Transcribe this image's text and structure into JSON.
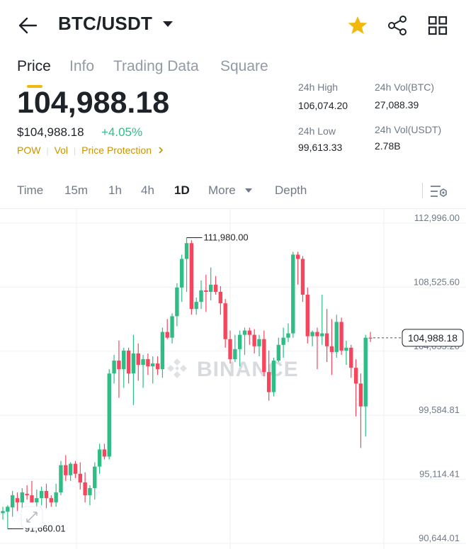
{
  "header": {
    "pair": "BTC/USDT",
    "icons": [
      "back-arrow-icon",
      "chevron-down-icon",
      "star-icon",
      "share-icon",
      "grid-icon"
    ],
    "star_color": "#f0b90b"
  },
  "tabs": [
    {
      "label": "Price",
      "active": true
    },
    {
      "label": "Info"
    },
    {
      "label": "Trading Data"
    },
    {
      "label": "Square"
    }
  ],
  "price": {
    "last": "104,988.18",
    "usd": "$104,988.18",
    "change": "+4.05%",
    "change_color": "#2ebd85",
    "tags": [
      "POW",
      "Vol",
      "Price Protection"
    ]
  },
  "stats": {
    "high_label": "24h High",
    "high": "106,074.20",
    "vol_btc_label": "24h Vol(BTC)",
    "vol_btc": "27,088.39",
    "low_label": "24h Low",
    "low": "99,613.33",
    "vol_usdt_label": "24h Vol(USDT)",
    "vol_usdt": "2.78B"
  },
  "intervals": {
    "time": "Time",
    "m15": "15m",
    "h1": "1h",
    "h4": "4h",
    "d1": "1D",
    "more": "More",
    "depth": "Depth"
  },
  "chart_data": {
    "type": "candlestick",
    "interval": "1D",
    "y_ticks": [
      112996.0,
      108525.6,
      104055.2,
      99584.81,
      95114.41,
      90644.01
    ],
    "y_tick_labels": [
      "112,996.00",
      "108,525.60",
      "104,055.20",
      "99,584.81",
      "95,114.41",
      "90,644.01"
    ],
    "ylim": [
      90644.01,
      112996.0
    ],
    "last_price": 104988.18,
    "last_price_label": "104,988.18",
    "max_label": "111,980.00",
    "max_value": 111980.0,
    "min_label": "91,660.01",
    "min_value": 91660.01,
    "watermark": "BINANCE",
    "up_color": "#2ebd85",
    "down_color": "#f6465d",
    "candles": [
      {
        "o": 92750,
        "h": 93200,
        "l": 92300,
        "c": 92900
      },
      {
        "o": 92850,
        "h": 93300,
        "l": 91660,
        "c": 93200
      },
      {
        "o": 93150,
        "h": 94300,
        "l": 92500,
        "c": 94000
      },
      {
        "o": 93800,
        "h": 94200,
        "l": 92900,
        "c": 93500
      },
      {
        "o": 93500,
        "h": 94500,
        "l": 93000,
        "c": 94200
      },
      {
        "o": 94100,
        "h": 94700,
        "l": 93700,
        "c": 94000
      },
      {
        "o": 94000,
        "h": 95000,
        "l": 93500,
        "c": 93500
      },
      {
        "o": 93500,
        "h": 94400,
        "l": 92700,
        "c": 93800
      },
      {
        "o": 93800,
        "h": 94600,
        "l": 93300,
        "c": 94300
      },
      {
        "o": 94300,
        "h": 94800,
        "l": 93100,
        "c": 93800
      },
      {
        "o": 93800,
        "h": 94000,
        "l": 93200,
        "c": 93500
      },
      {
        "o": 93500,
        "h": 94800,
        "l": 93200,
        "c": 94200
      },
      {
        "o": 94200,
        "h": 96400,
        "l": 94000,
        "c": 96100
      },
      {
        "o": 96100,
        "h": 96800,
        "l": 95000,
        "c": 95400
      },
      {
        "o": 95400,
        "h": 96300,
        "l": 95000,
        "c": 96200
      },
      {
        "o": 96200,
        "h": 96400,
        "l": 95200,
        "c": 95500
      },
      {
        "o": 95500,
        "h": 96300,
        "l": 94400,
        "c": 94900
      },
      {
        "o": 94900,
        "h": 95600,
        "l": 93500,
        "c": 94000
      },
      {
        "o": 94000,
        "h": 94700,
        "l": 93300,
        "c": 94500
      },
      {
        "o": 94500,
        "h": 96300,
        "l": 93700,
        "c": 96000
      },
      {
        "o": 96000,
        "h": 97600,
        "l": 95500,
        "c": 97200
      },
      {
        "o": 97200,
        "h": 97600,
        "l": 96500,
        "c": 96700
      },
      {
        "o": 96700,
        "h": 102800,
        "l": 96500,
        "c": 102500
      },
      {
        "o": 102500,
        "h": 103800,
        "l": 101800,
        "c": 103400
      },
      {
        "o": 103400,
        "h": 104800,
        "l": 100800,
        "c": 102800
      },
      {
        "o": 102800,
        "h": 104300,
        "l": 101500,
        "c": 104100
      },
      {
        "o": 104100,
        "h": 104300,
        "l": 101800,
        "c": 102500
      },
      {
        "o": 102500,
        "h": 105200,
        "l": 100300,
        "c": 103900
      },
      {
        "o": 103900,
        "h": 104600,
        "l": 102000,
        "c": 103100
      },
      {
        "o": 103100,
        "h": 103800,
        "l": 101500,
        "c": 103500
      },
      {
        "o": 103500,
        "h": 103900,
        "l": 102400,
        "c": 103000
      },
      {
        "o": 103000,
        "h": 103700,
        "l": 101800,
        "c": 103200
      },
      {
        "o": 103200,
        "h": 103700,
        "l": 102400,
        "c": 102800
      },
      {
        "o": 102800,
        "h": 105700,
        "l": 102200,
        "c": 105400
      },
      {
        "o": 105400,
        "h": 106300,
        "l": 104900,
        "c": 105000
      },
      {
        "o": 105000,
        "h": 106700,
        "l": 104600,
        "c": 106500
      },
      {
        "o": 106500,
        "h": 108800,
        "l": 105800,
        "c": 108500
      },
      {
        "o": 108500,
        "h": 110800,
        "l": 107500,
        "c": 110500
      },
      {
        "o": 110500,
        "h": 111980,
        "l": 108200,
        "c": 111600
      },
      {
        "o": 111600,
        "h": 111800,
        "l": 106600,
        "c": 107000
      },
      {
        "o": 107000,
        "h": 107800,
        "l": 106600,
        "c": 107500
      },
      {
        "o": 107500,
        "h": 109000,
        "l": 107000,
        "c": 108300
      },
      {
        "o": 108300,
        "h": 109400,
        "l": 106800,
        "c": 108200
      },
      {
        "o": 108200,
        "h": 109900,
        "l": 107600,
        "c": 108700
      },
      {
        "o": 108700,
        "h": 109300,
        "l": 108000,
        "c": 108200
      },
      {
        "o": 108200,
        "h": 108600,
        "l": 106600,
        "c": 107400
      },
      {
        "o": 107400,
        "h": 107700,
        "l": 104300,
        "c": 104900
      },
      {
        "o": 104900,
        "h": 105500,
        "l": 103200,
        "c": 103500
      },
      {
        "o": 103500,
        "h": 105200,
        "l": 103300,
        "c": 104200
      },
      {
        "o": 104200,
        "h": 105500,
        "l": 103000,
        "c": 105200
      },
      {
        "o": 105200,
        "h": 105700,
        "l": 103800,
        "c": 105500
      },
      {
        "o": 105500,
        "h": 105700,
        "l": 104500,
        "c": 105200
      },
      {
        "o": 105200,
        "h": 105600,
        "l": 103900,
        "c": 104400
      },
      {
        "o": 104400,
        "h": 105200,
        "l": 103700,
        "c": 104900
      },
      {
        "o": 104900,
        "h": 105500,
        "l": 102300,
        "c": 102600
      },
      {
        "o": 102600,
        "h": 104100,
        "l": 100600,
        "c": 101200
      },
      {
        "o": 101200,
        "h": 103600,
        "l": 100900,
        "c": 103400
      },
      {
        "o": 103400,
        "h": 105000,
        "l": 103300,
        "c": 104500
      },
      {
        "o": 104500,
        "h": 105700,
        "l": 103600,
        "c": 105000
      },
      {
        "o": 105000,
        "h": 106000,
        "l": 104700,
        "c": 105300
      },
      {
        "o": 105300,
        "h": 111000,
        "l": 105000,
        "c": 110800
      },
      {
        "o": 110800,
        "h": 111000,
        "l": 108700,
        "c": 110500
      },
      {
        "o": 110500,
        "h": 110700,
        "l": 107500,
        "c": 108000
      },
      {
        "o": 108000,
        "h": 108500,
        "l": 104600,
        "c": 105100
      },
      {
        "o": 105100,
        "h": 105500,
        "l": 104400,
        "c": 105400
      },
      {
        "o": 105400,
        "h": 105700,
        "l": 102800,
        "c": 105100
      },
      {
        "o": 105100,
        "h": 108000,
        "l": 104500,
        "c": 105300
      },
      {
        "o": 105300,
        "h": 107000,
        "l": 103300,
        "c": 104400
      },
      {
        "o": 104400,
        "h": 106300,
        "l": 102400,
        "c": 104000
      },
      {
        "o": 104000,
        "h": 106600,
        "l": 103600,
        "c": 106100
      },
      {
        "o": 106100,
        "h": 106400,
        "l": 103800,
        "c": 104100
      },
      {
        "o": 104100,
        "h": 104800,
        "l": 103100,
        "c": 104300
      },
      {
        "o": 104300,
        "h": 104500,
        "l": 102200,
        "c": 102900
      },
      {
        "o": 102900,
        "h": 103500,
        "l": 99500,
        "c": 101800
      },
      {
        "o": 101800,
        "h": 102500,
        "l": 97300,
        "c": 100200
      },
      {
        "o": 100200,
        "h": 105200,
        "l": 98100,
        "c": 105000
      },
      {
        "o": 105000,
        "h": 105400,
        "l": 104700,
        "c": 104988.18
      }
    ]
  }
}
